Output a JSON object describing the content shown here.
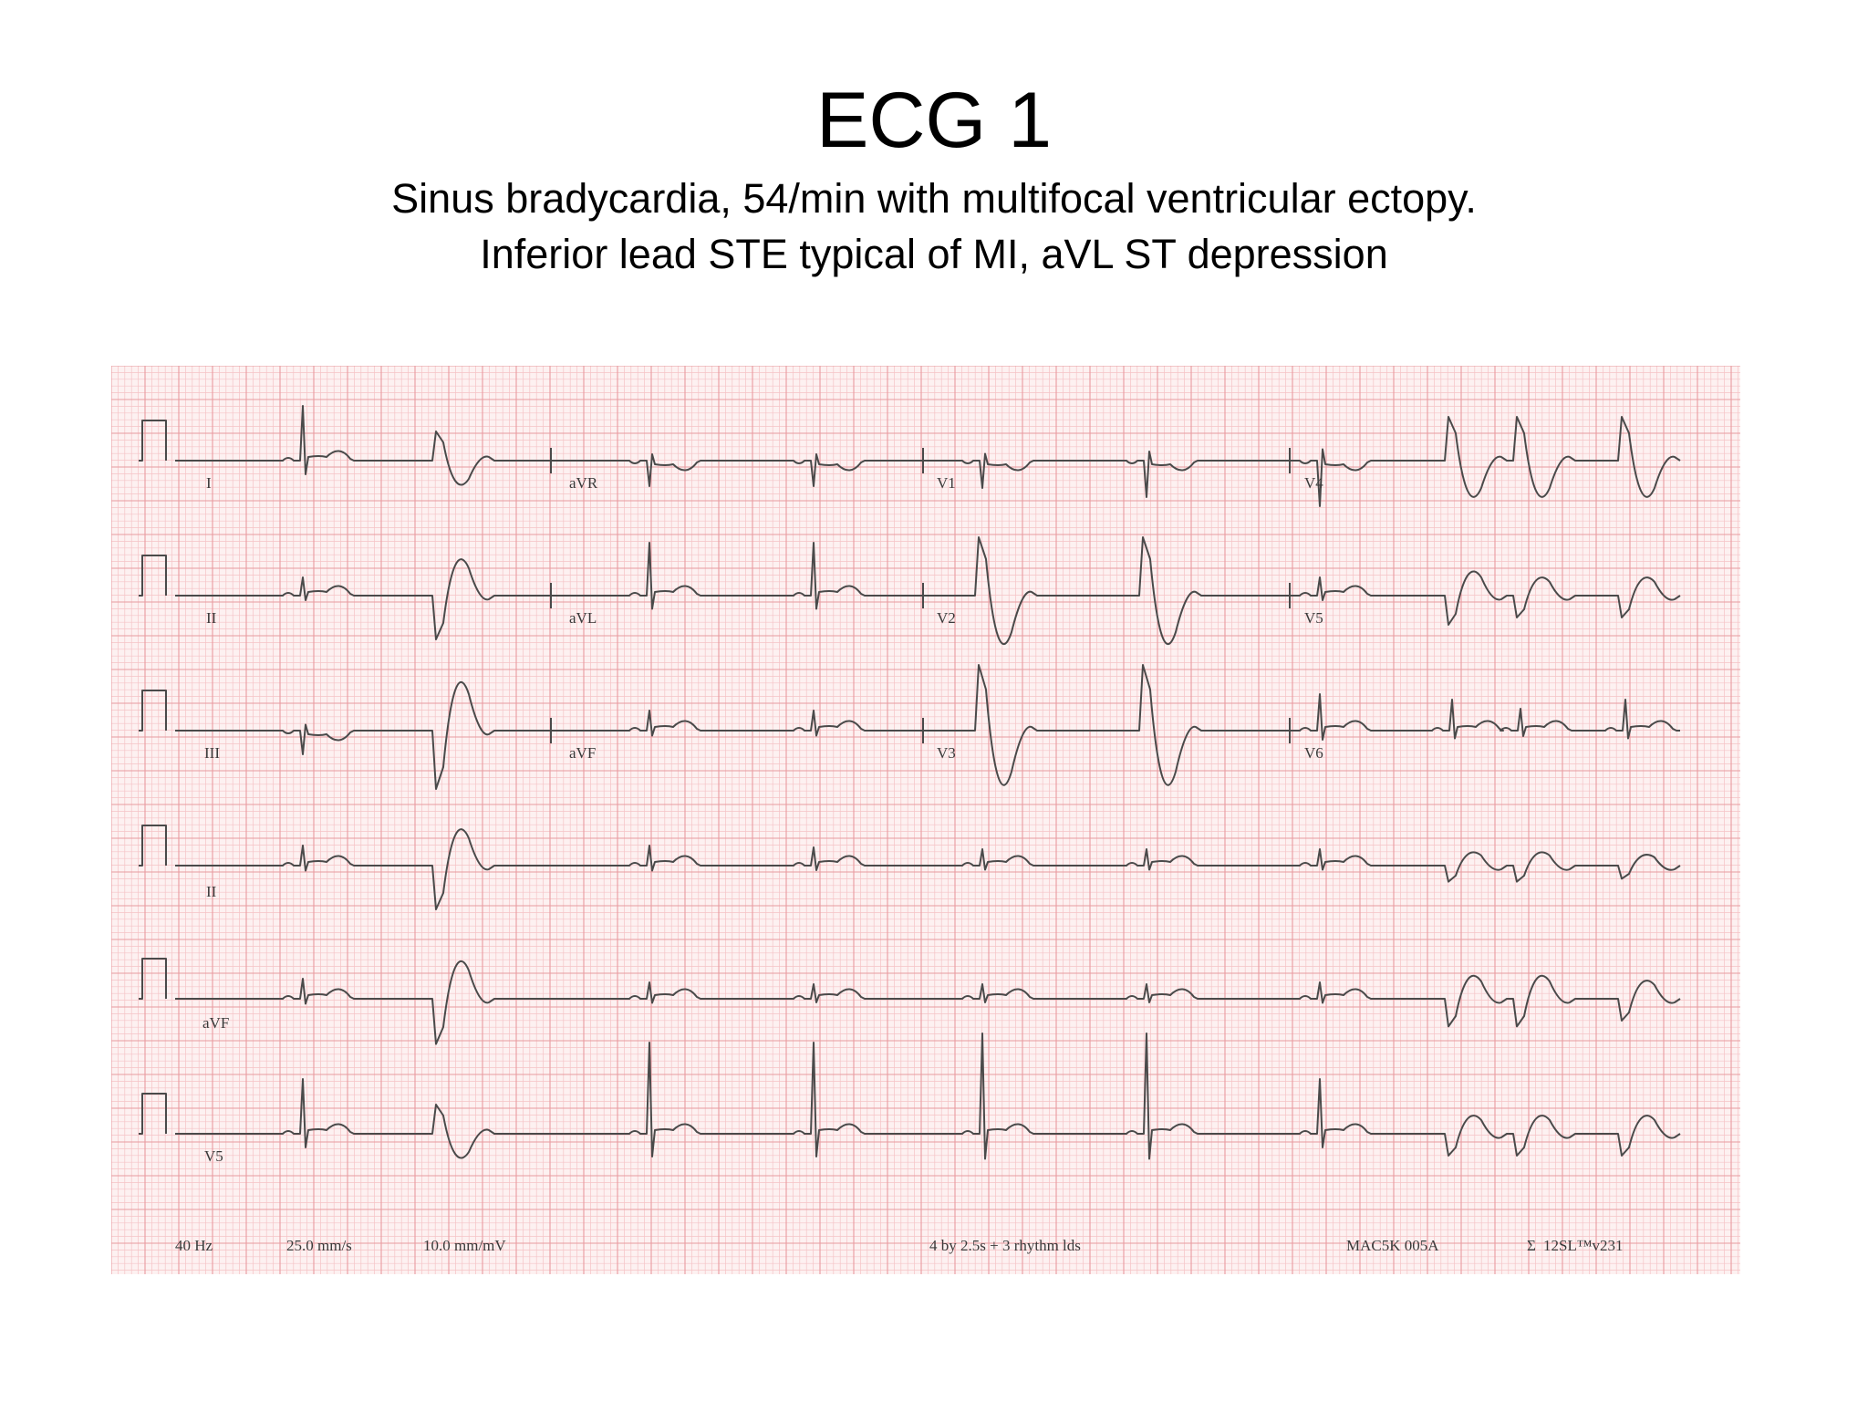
{
  "slide": {
    "title": "ECG 1",
    "subtitle_line1": "Sinus bradycardia, 54/min with multifocal ventricular ectopy.",
    "subtitle_line2": "Inferior lead STE typical of MI, aVL ST depression"
  },
  "ecg": {
    "lead_labels": {
      "row1": [
        "I",
        "aVR",
        "V1",
        "V4"
      ],
      "row2": [
        "II",
        "aVL",
        "V2",
        "V5"
      ],
      "row3": [
        "III",
        "aVF",
        "V3",
        "V6"
      ],
      "rhythm": [
        "II",
        "aVF",
        "V5"
      ]
    },
    "footer": {
      "filter": "40 Hz",
      "speed": "25.0 mm/s",
      "gain": "10.0 mm/mV",
      "format": "4 by 2.5s + 3 rhythm lds",
      "device": "MAC5K 005A",
      "software": "12SL™v231"
    },
    "colors": {
      "paper": "#fdf1f1",
      "grid_minor": "#f5c3c6",
      "grid_major": "#e89aa0",
      "trace": "#4a4a4a"
    }
  }
}
